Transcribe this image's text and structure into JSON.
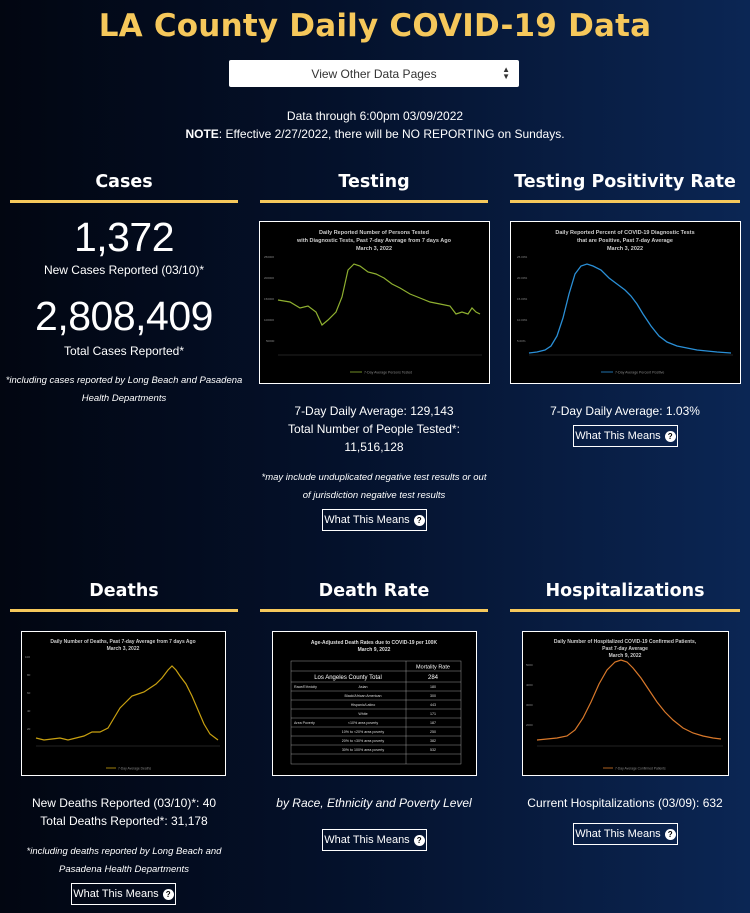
{
  "header": {
    "title": "LA County Daily COVID-19 Data",
    "select_label": "View Other Data Pages",
    "data_through": "Data through 6:00pm 03/09/2022",
    "note_label": "NOTE",
    "note_text": ": Effective 2/27/2022, there will be NO REPORTING on Sundays."
  },
  "cases": {
    "heading": "Cases",
    "new_cases_value": "1,372",
    "new_cases_label": "New Cases Reported (03/10)*",
    "total_cases_value": "2,808,409",
    "total_cases_label": "Total Cases Reported*",
    "footnote_line1": "*including cases reported by Long Beach and Pasadena",
    "footnote_line2": "Health Departments"
  },
  "testing": {
    "heading": "Testing",
    "chart_title_1": "Daily Reported Number of Persons Tested",
    "chart_title_2": "with Diagnostic Tests, Past 7-day Average from 7 days Ago",
    "chart_title_3": "March 3, 2022",
    "avg_label": "7-Day Daily Average: 129,143",
    "total_label": "Total Number of People Tested*:",
    "total_value": "11,516,128",
    "footnote_line1": "*may include unduplicated negative test results or out",
    "footnote_line2": "of jurisdiction negative test results",
    "button_label": "What This Means"
  },
  "positivity": {
    "heading": "Testing Positivity Rate",
    "chart_title_1": "Daily Reported Percent of COVID-19 Diagnostic Tests",
    "chart_title_2": "that are Positive, Past 7-day Average",
    "chart_title_3": "March 3, 2022",
    "avg_label": "7-Day Daily Average: 1.03%",
    "button_label": "What This Means"
  },
  "deaths": {
    "heading": "Deaths",
    "chart_title_1": "Daily Number of Deaths, Past 7-day Average from 7 days Ago",
    "chart_title_2": "March 3, 2022",
    "new_label": "New Deaths Reported (03/10)*: 40",
    "total_label": "Total Deaths Reported*: 31,178",
    "footnote_line1": "*including deaths reported by Long Beach and",
    "footnote_line2": "Pasadena Health Departments",
    "button_label": "What This Means"
  },
  "death_rate": {
    "heading": "Death Rate",
    "chart_title_1": "Age-Adjusted Death Rates due to COVID-19 per 100K",
    "chart_title_2": "March 9, 2022",
    "table_header": "Mortality Rate",
    "table_total_label": "Los Angeles County Total",
    "table_total_value": "284",
    "table_rows": [
      {
        "group": "Race/Ethnicity",
        "label": "Asian",
        "value": "180"
      },
      {
        "group": "",
        "label": "Black/African American",
        "value": "300"
      },
      {
        "group": "",
        "label": "Hispanic/Latino",
        "value": "443"
      },
      {
        "group": "",
        "label": "White",
        "value": "171"
      },
      {
        "group": "Area Poverty",
        "label": "<10% area poverty",
        "value": "187"
      },
      {
        "group": "",
        "label": "10% to <20% area poverty",
        "value": "250"
      },
      {
        "group": "",
        "label": "20% to <30% area poverty",
        "value": "382"
      },
      {
        "group": "",
        "label": "30% to 100% area poverty",
        "value": "532"
      }
    ],
    "caption": "by Race, Ethnicity and Poverty Level",
    "button_label": "What This Means"
  },
  "hospitalizations": {
    "heading": "Hospitalizations",
    "chart_title_1": "Daily Number of Hospitalized COVID-19 Confirmed Patients,",
    "chart_title_2": "Past 7-day Average",
    "chart_title_3": "March 9, 2022",
    "current_label": "Current Hospitalizations (03/09): 632",
    "button_label": "What This Means"
  },
  "colors": {
    "accent": "#f6c85b",
    "testing_line": "#8fb030",
    "positivity_line": "#2a8fd6",
    "deaths_line": "#c8a010",
    "hosp_line": "#d8782a"
  },
  "icons": {
    "select_arrows": "select-arrows-icon",
    "help": "question-circle-icon"
  }
}
